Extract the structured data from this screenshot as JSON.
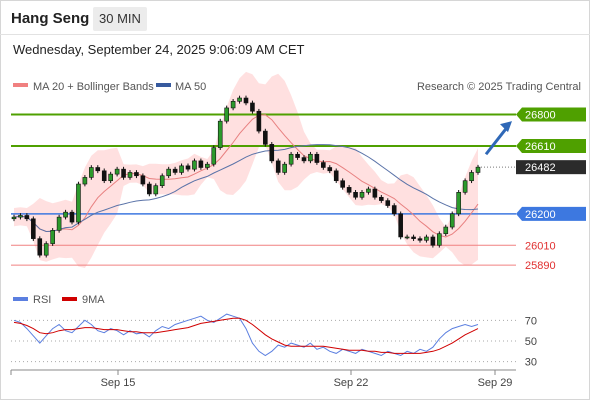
{
  "header": {
    "title": "Hang Seng",
    "interval": "30 MIN"
  },
  "timestamp": "Wednesday, September 24, 2025 9:06:09 AM CET",
  "legend": {
    "ma20": "MA 20 + Bollinger Bands",
    "ma50": "MA 50",
    "source": "Research © 2025 Trading Central"
  },
  "colors": {
    "resistance": "#4fa000",
    "support_strong": "#3d78e0",
    "support": "#f08080",
    "last_price": "#2b2b2b",
    "bollinger": "#ffd6d6",
    "ma20": "#e88080",
    "ma50": "#5a73a8",
    "arrow": "#2f68b7",
    "rsi": "#5b7fe0",
    "rsi_ma": "#d00000"
  },
  "chart_data": [
    {
      "type": "candlestick",
      "ylim": [
        25800,
        26900
      ],
      "x_ticks": [
        "Sep 15",
        "Sep 22",
        "Sep 29"
      ],
      "levels": [
        {
          "value": 26800,
          "label": "26800",
          "kind": "resistance"
        },
        {
          "value": 26610,
          "label": "26610",
          "kind": "resistance"
        },
        {
          "value": 26482,
          "label": "26482",
          "kind": "last_price"
        },
        {
          "value": 26200,
          "label": "26200",
          "kind": "support_strong"
        },
        {
          "value": 26010,
          "label": "26010",
          "kind": "support"
        },
        {
          "value": 25890,
          "label": "25890",
          "kind": "support"
        }
      ],
      "close_path": [
        26180,
        26190,
        26170,
        26050,
        25950,
        26020,
        26100,
        26180,
        26210,
        26150,
        26380,
        26420,
        26480,
        26460,
        26400,
        26440,
        26470,
        26420,
        26450,
        26430,
        26380,
        26320,
        26370,
        26430,
        26470,
        26450,
        26490,
        26470,
        26520,
        26480,
        26500,
        26600,
        26760,
        26840,
        26880,
        26900,
        26870,
        26820,
        26700,
        26620,
        26520,
        26450,
        26500,
        26560,
        26540,
        26520,
        26560,
        26510,
        26480,
        26460,
        26400,
        26360,
        26330,
        26300,
        26330,
        26350,
        26300,
        26280,
        26250,
        26200,
        26060,
        26060,
        26050,
        26040,
        26060,
        26010,
        26080,
        26120,
        26200,
        26330,
        26400,
        26450,
        26482
      ],
      "arrow": {
        "from": 26560,
        "to": 26760
      }
    },
    {
      "type": "line",
      "title": "RSI",
      "series": [
        {
          "name": "RSI",
          "values": [
            70,
            68,
            62,
            55,
            48,
            55,
            62,
            66,
            60,
            58,
            64,
            70,
            66,
            60,
            58,
            62,
            60,
            56,
            60,
            57,
            58,
            54,
            60,
            64,
            62,
            66,
            68,
            70,
            72,
            74,
            70,
            68,
            72,
            76,
            74,
            72,
            62,
            48,
            40,
            36,
            40,
            46,
            44,
            48,
            46,
            44,
            48,
            42,
            44,
            40,
            38,
            42,
            40,
            38,
            42,
            40,
            38,
            36,
            40,
            38,
            36,
            40,
            38,
            42,
            40,
            44,
            52,
            58,
            62,
            64,
            66,
            64,
            66
          ]
        },
        {
          "name": "9MA",
          "values": [
            68,
            67,
            65,
            62,
            58,
            57,
            58,
            60,
            61,
            61,
            62,
            63,
            63,
            62,
            61,
            61,
            61,
            60,
            59,
            59,
            58,
            58,
            58,
            59,
            60,
            61,
            62,
            63,
            65,
            67,
            68,
            69,
            70,
            71,
            72,
            72,
            70,
            66,
            61,
            56,
            52,
            49,
            46,
            45,
            45,
            45,
            45,
            45,
            45,
            44,
            43,
            42,
            41,
            41,
            41,
            40,
            40,
            39,
            39,
            38,
            38,
            38,
            38,
            38,
            39,
            40,
            42,
            45,
            48,
            52,
            56,
            59,
            62
          ]
        }
      ],
      "ylim": [
        20,
        80
      ],
      "y_ticks": [
        "70",
        "50",
        "30"
      ]
    }
  ]
}
